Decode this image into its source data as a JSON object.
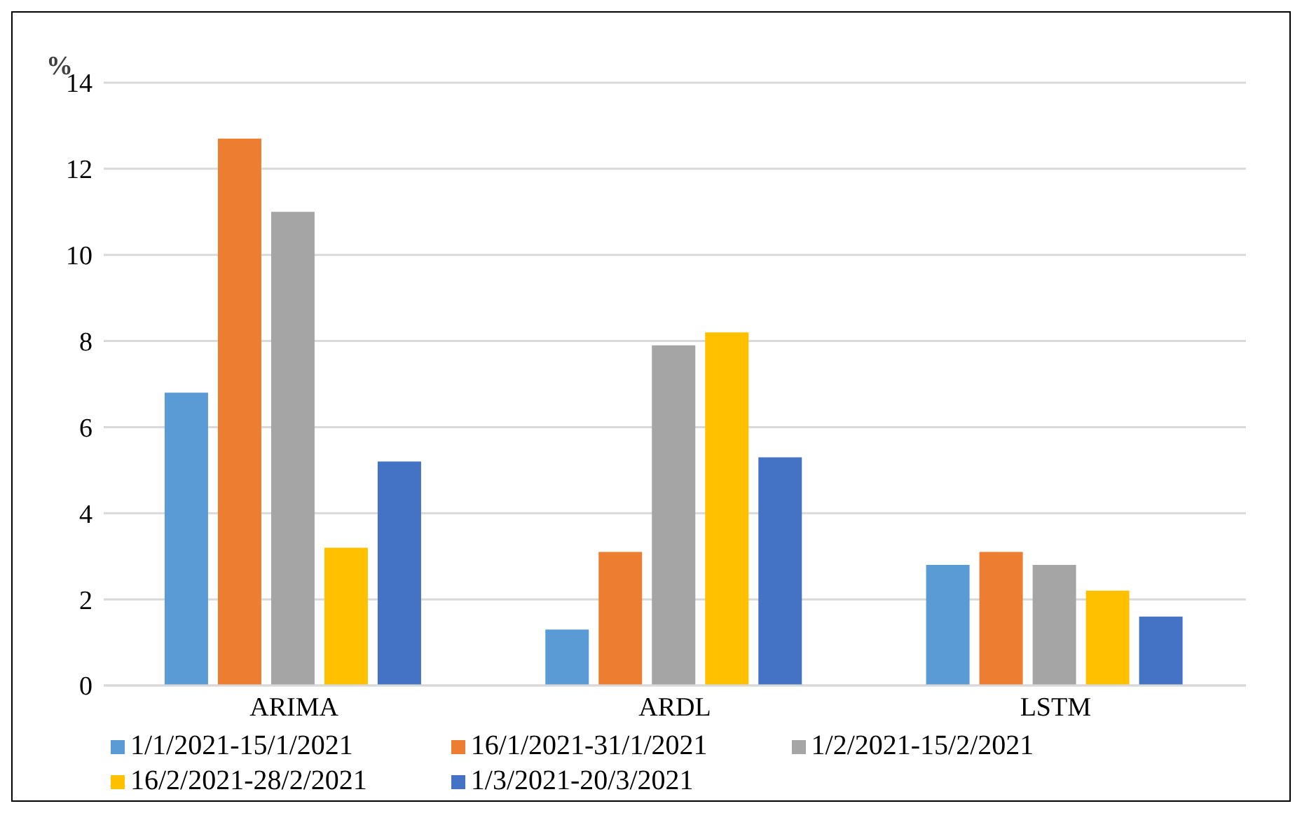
{
  "chart_data": {
    "type": "bar",
    "ylabel": "%",
    "categories": [
      "ARIMA",
      "ARDL",
      "LSTM"
    ],
    "series": [
      {
        "name": "1/1/2021-15/1/2021",
        "color": "#5b9bd5",
        "values": [
          6.8,
          1.3,
          2.8
        ]
      },
      {
        "name": "16/1/2021-31/1/2021",
        "color": "#ed7d31",
        "values": [
          12.7,
          3.1,
          3.1
        ]
      },
      {
        "name": "1/2/2021-15/2/2021",
        "color": "#a5a5a5",
        "values": [
          11.0,
          7.9,
          2.8
        ]
      },
      {
        "name": "16/2/2021-28/2/2021",
        "color": "#ffc000",
        "values": [
          3.2,
          8.2,
          2.2
        ]
      },
      {
        "name": "1/3/2021-20/3/2021",
        "color": "#4472c4",
        "values": [
          5.2,
          5.3,
          1.6
        ]
      }
    ],
    "ylim": [
      0,
      14
    ],
    "yticks": [
      0,
      2,
      4,
      6,
      8,
      10,
      12,
      14
    ],
    "grid": "y",
    "legend": "bottom"
  }
}
